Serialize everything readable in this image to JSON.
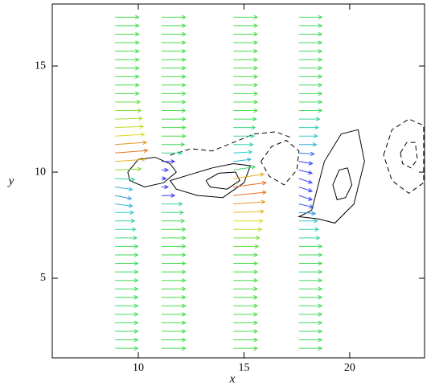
{
  "chart_data": {
    "type": "quiver",
    "x_label": "x",
    "y_label": "y",
    "xlim": [
      5.93,
      23.54
    ],
    "ylim": [
      1.25,
      17.92
    ],
    "xticks": [
      10,
      15,
      20
    ],
    "yticks": [
      5,
      10,
      15
    ],
    "colormap": [
      "#3333ff",
      "#33cccc",
      "#44dd44",
      "#dddd22",
      "#ee3322"
    ],
    "color_range": [
      0.6,
      1.6
    ],
    "vector_y": [
      1.7,
      2.1,
      2.5,
      2.9,
      3.3,
      3.7,
      4.1,
      4.5,
      4.9,
      5.3,
      5.7,
      6.1,
      6.5,
      6.9,
      7.3,
      7.7,
      8.1,
      8.5,
      8.9,
      9.3,
      9.7,
      10.1,
      10.5,
      10.9,
      11.3,
      11.7,
      12.1,
      12.5,
      12.9,
      13.3,
      13.7,
      14.1,
      14.5,
      14.9,
      15.3,
      15.7,
      16.1,
      16.5,
      16.9,
      17.3
    ],
    "vectors": [
      {
        "x": 8.9,
        "u": [
          1.05,
          1.05,
          1.05,
          1.05,
          1.05,
          1.05,
          1.05,
          1.05,
          1.05,
          1.05,
          1.05,
          1.05,
          1.05,
          1.0,
          0.95,
          0.9,
          0.85,
          0.8,
          0.75,
          0.8,
          0.9,
          1.2,
          1.4,
          1.5,
          1.45,
          1.35,
          1.3,
          1.25,
          1.2,
          1.15,
          1.1,
          1.1,
          1.1,
          1.1,
          1.1,
          1.1,
          1.1,
          1.1,
          1.1,
          1.1
        ],
        "v": [
          0,
          0,
          0,
          0,
          0,
          0,
          0,
          0,
          0,
          0,
          0,
          0,
          0,
          0,
          0,
          0,
          0,
          -0.1,
          -0.15,
          -0.12,
          -0.05,
          0.05,
          0.1,
          0.12,
          0.1,
          0.08,
          0.05,
          0.03,
          0,
          0,
          0,
          0,
          0,
          0,
          0,
          0,
          0,
          0,
          0,
          0
        ]
      },
      {
        "x": 11.1,
        "u": [
          1.1,
          1.1,
          1.1,
          1.1,
          1.1,
          1.1,
          1.1,
          1.1,
          1.1,
          1.1,
          1.1,
          1.1,
          1.1,
          1.1,
          1.1,
          1.05,
          1.0,
          0.95,
          0.6,
          0.3,
          0.2,
          0.3,
          0.6,
          0.95,
          1.05,
          1.1,
          1.1,
          1.1,
          1.1,
          1.1,
          1.1,
          1.1,
          1.1,
          1.1,
          1.1,
          1.1,
          1.1,
          1.1,
          1.1,
          1.1
        ],
        "v": [
          0,
          0,
          0,
          0,
          0,
          0,
          0,
          0,
          0,
          0,
          0,
          0,
          0,
          0,
          0,
          0,
          0,
          0,
          0,
          0,
          0,
          0,
          0,
          0,
          0,
          0,
          0,
          0,
          0,
          0,
          0,
          0,
          0,
          0,
          0,
          0,
          0,
          0,
          0,
          0
        ]
      },
      {
        "x": 14.5,
        "u": [
          1.1,
          1.1,
          1.1,
          1.1,
          1.1,
          1.1,
          1.1,
          1.1,
          1.1,
          1.1,
          1.1,
          1.1,
          1.15,
          1.2,
          1.3,
          1.35,
          1.4,
          1.45,
          1.5,
          1.5,
          1.4,
          1.0,
          0.8,
          0.85,
          0.9,
          0.95,
          1.0,
          1.05,
          1.1,
          1.1,
          1.1,
          1.1,
          1.1,
          1.1,
          1.1,
          1.1,
          1.1,
          1.1,
          1.1,
          1.1
        ],
        "v": [
          0,
          0,
          0,
          0,
          0,
          0,
          0,
          0,
          0,
          0,
          0,
          0,
          0,
          0,
          0,
          0,
          0.05,
          0.1,
          0.15,
          0.2,
          0.2,
          0.15,
          0.1,
          0.05,
          0,
          0,
          0,
          0,
          0,
          0,
          0,
          0,
          0,
          0,
          0,
          0,
          0,
          0,
          0,
          0
        ]
      },
      {
        "x": 17.6,
        "u": [
          1.05,
          1.05,
          1.05,
          1.05,
          1.05,
          1.05,
          1.05,
          1.05,
          1.05,
          1.05,
          1.05,
          1.05,
          1.05,
          0.95,
          0.9,
          0.85,
          0.75,
          0.65,
          0.6,
          0.6,
          0.6,
          0.6,
          0.62,
          0.7,
          0.8,
          0.85,
          0.9,
          0.95,
          1.05,
          1.05,
          1.05,
          1.05,
          1.05,
          1.05,
          1.05,
          1.05,
          1.05,
          1.05,
          1.05,
          1.05
        ],
        "v": [
          0,
          0,
          0,
          0,
          0,
          0,
          0,
          0,
          0,
          0,
          0,
          0,
          0,
          0,
          0,
          0,
          -0.05,
          -0.15,
          -0.2,
          -0.2,
          -0.2,
          -0.15,
          -0.1,
          -0.05,
          0,
          0,
          0,
          0,
          0,
          0,
          0,
          0,
          0,
          0,
          0,
          0,
          0,
          0,
          0,
          0
        ]
      }
    ],
    "contours": [
      {
        "style": "solid",
        "x": [
          9.5,
          10.0,
          10.8,
          11.5,
          11.8,
          11.2,
          10.3,
          9.6,
          9.5
        ],
        "y": [
          10.0,
          10.6,
          10.7,
          10.4,
          10.0,
          9.5,
          9.3,
          9.6,
          10.0
        ]
      },
      {
        "style": "solid",
        "x": [
          11.5,
          12.5,
          13.5,
          14.5,
          15.3,
          15.0,
          14.0,
          12.8,
          11.8,
          11.5
        ],
        "y": [
          9.6,
          9.9,
          10.2,
          10.4,
          10.3,
          9.5,
          8.8,
          8.9,
          9.2,
          9.6
        ]
      },
      {
        "style": "solid",
        "x": [
          13.2,
          13.8,
          14.6,
          14.8,
          14.2,
          13.4,
          13.2
        ],
        "y": [
          9.6,
          9.95,
          10.0,
          9.6,
          9.2,
          9.3,
          9.6
        ]
      },
      {
        "style": "dashed",
        "x": [
          15.8,
          16.3,
          17.0,
          17.6,
          17.5,
          16.9,
          16.2,
          15.8
        ],
        "y": [
          10.5,
          11.2,
          11.5,
          11.0,
          10.1,
          9.4,
          9.8,
          10.5
        ]
      },
      {
        "style": "dashed",
        "x": [
          11.5,
          12.5,
          13.5,
          14.5,
          15.5,
          16.5,
          17.3
        ],
        "y": [
          10.8,
          11.1,
          11.0,
          11.4,
          11.8,
          11.9,
          11.6
        ]
      },
      {
        "style": "solid",
        "x": [
          18.2,
          18.8,
          19.6,
          20.4,
          20.7,
          20.2,
          19.3,
          18.5,
          17.6,
          18.2
        ],
        "y": [
          8.2,
          10.5,
          11.8,
          12.0,
          10.5,
          8.5,
          7.6,
          7.8,
          7.9,
          8.2
        ]
      },
      {
        "style": "solid",
        "x": [
          19.2,
          19.5,
          19.9,
          20.1,
          19.8,
          19.4,
          19.2
        ],
        "y": [
          9.4,
          10.1,
          10.2,
          9.4,
          8.8,
          8.7,
          9.4
        ]
      },
      {
        "style": "dashed",
        "x": [
          21.6,
          22.0,
          22.8,
          23.5,
          23.5,
          22.8,
          22.0,
          21.6
        ],
        "y": [
          10.8,
          12.0,
          12.5,
          12.2,
          9.5,
          9.0,
          9.6,
          10.8
        ]
      },
      {
        "style": "dashed",
        "x": [
          22.4,
          22.7,
          23.1,
          23.2,
          22.9,
          22.5,
          22.4
        ],
        "y": [
          10.9,
          11.4,
          11.4,
          10.6,
          10.2,
          10.4,
          10.9
        ]
      }
    ]
  }
}
